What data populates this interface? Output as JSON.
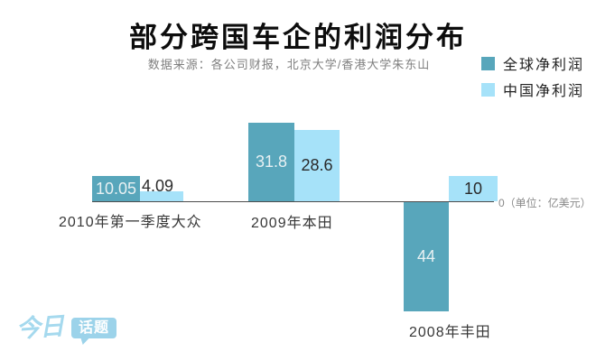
{
  "header": {
    "title": "部分跨国车企的利润分布",
    "source": "数据来源：各公司财报，北京大学/香港大学朱东山"
  },
  "axis": {
    "zero_label": "0（单位：亿美元）"
  },
  "logo": {
    "part1": "今日",
    "part2": "话题"
  },
  "chart_data": {
    "type": "bar",
    "title": "部分跨国车企的利润分布",
    "source": "数据来源：各公司财报，北京大学/香港大学朱东山",
    "unit": "亿美元",
    "zero_axis_label": "0（单位：亿美元）",
    "categories": [
      "2010年第一季度大众",
      "2009年本田",
      "2008年丰田"
    ],
    "series": [
      {
        "name": "全球净利润",
        "color": "#58a6bb",
        "values": [
          10.05,
          31.8,
          -44
        ],
        "value_labels": [
          "10.05",
          "31.8",
          "44"
        ]
      },
      {
        "name": "中国净利润",
        "color": "#a6e2f9",
        "values": [
          4.09,
          28.6,
          10
        ],
        "value_labels": [
          "4.09",
          "28.6",
          "10"
        ]
      }
    ],
    "baseline": 0,
    "grid": false,
    "legend_position": "top-right",
    "ylim": [
      -48,
      34
    ]
  }
}
